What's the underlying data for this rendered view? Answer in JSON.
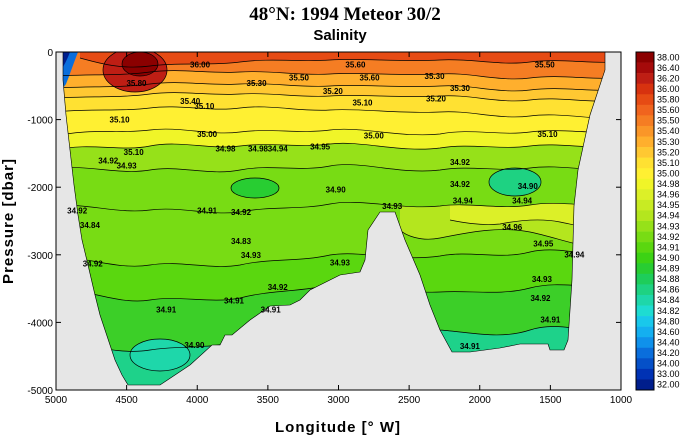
{
  "chart_data": {
    "type": "heatmap",
    "title": "48°N: 1994 Meteor 30/2",
    "subtitle": "Salinity",
    "xlabel": "Longitude [° W]",
    "ylabel": "Pressure [dbar]",
    "xlim": [
      5000,
      1000
    ],
    "ylim": [
      0,
      -5000
    ],
    "x_ticks": [
      "5000",
      "4500",
      "4000",
      "3500",
      "3000",
      "2500",
      "2000",
      "1500",
      "1000"
    ],
    "y_ticks": [
      "0",
      "-1000",
      "-2000",
      "-3000",
      "-4000",
      "-5000"
    ],
    "colorbar_levels": [
      "38.00",
      "36.40",
      "36.20",
      "36.00",
      "35.80",
      "35.60",
      "35.50",
      "35.40",
      "35.30",
      "35.20",
      "35.10",
      "35.00",
      "34.98",
      "34.96",
      "34.95",
      "34.94",
      "34.93",
      "34.92",
      "34.91",
      "34.90",
      "34.89",
      "34.88",
      "34.86",
      "34.84",
      "34.82",
      "34.80",
      "34.60",
      "34.40",
      "34.20",
      "34.00",
      "33.00",
      "32.00"
    ],
    "colorbar_colors": [
      "#8b0000",
      "#a50a0a",
      "#be1e14",
      "#d7320f",
      "#e64b14",
      "#f0641e",
      "#f57d23",
      "#fa9628",
      "#ffaf2d",
      "#ffc832",
      "#ffe132",
      "#fff032",
      "#f0f528",
      "#dcf028",
      "#c8eb23",
      "#b4e61e",
      "#96e119",
      "#78dc14",
      "#5ad70f",
      "#3cd214",
      "#28cd32",
      "#1ecd5a",
      "#1ed282",
      "#1ed7aa",
      "#1edcd2",
      "#19c8eb",
      "#14aff0",
      "#0f91eb",
      "#0a6edc",
      "#0550c8",
      "#0032b4",
      "#001e8c"
    ],
    "contour_labels": [
      {
        "text": "36.00",
        "lon": 3980,
        "p": -230
      },
      {
        "text": "35.60",
        "lon": 2880,
        "p": -230
      },
      {
        "text": "35.50",
        "lon": 1540,
        "p": -230
      },
      {
        "text": "35.80",
        "lon": 4430,
        "p": -500
      },
      {
        "text": "35.30",
        "lon": 3580,
        "p": -500
      },
      {
        "text": "35.50",
        "lon": 3280,
        "p": -420
      },
      {
        "text": "35.60",
        "lon": 2780,
        "p": -420
      },
      {
        "text": "35.30",
        "lon": 2320,
        "p": -400
      },
      {
        "text": "35.30",
        "lon": 2140,
        "p": -580
      },
      {
        "text": "35.20",
        "lon": 2310,
        "p": -730
      },
      {
        "text": "35.40",
        "lon": 4050,
        "p": -770
      },
      {
        "text": "35.20",
        "lon": 3040,
        "p": -620
      },
      {
        "text": "35.10",
        "lon": 3950,
        "p": -840
      },
      {
        "text": "35.10",
        "lon": 4550,
        "p": -1040
      },
      {
        "text": "35.10",
        "lon": 2830,
        "p": -790
      },
      {
        "text": "35.00",
        "lon": 3930,
        "p": -1260
      },
      {
        "text": "35.00",
        "lon": 2750,
        "p": -1280
      },
      {
        "text": "35.10",
        "lon": 1520,
        "p": -1260
      },
      {
        "text": "34.98",
        "lon": 3800,
        "p": -1470
      },
      {
        "text": "34.98",
        "lon": 3570,
        "p": -1470
      },
      {
        "text": "34.94",
        "lon": 3430,
        "p": -1470
      },
      {
        "text": "34.95",
        "lon": 3130,
        "p": -1440
      },
      {
        "text": "34.92",
        "lon": 4630,
        "p": -1650
      },
      {
        "text": "34.92",
        "lon": 2140,
        "p": -1670
      },
      {
        "text": "34.93",
        "lon": 4500,
        "p": -1720
      },
      {
        "text": "34.90",
        "lon": 3020,
        "p": -2080
      },
      {
        "text": "34.92",
        "lon": 2140,
        "p": -2000
      },
      {
        "text": "34.90",
        "lon": 1660,
        "p": -2030
      },
      {
        "text": "34.92",
        "lon": 4850,
        "p": -2390
      },
      {
        "text": "34.91",
        "lon": 3930,
        "p": -2390
      },
      {
        "text": "34.92",
        "lon": 3690,
        "p": -2410
      },
      {
        "text": "34.93",
        "lon": 2620,
        "p": -2320
      },
      {
        "text": "34.94",
        "lon": 2120,
        "p": -2240
      },
      {
        "text": "34.94",
        "lon": 1700,
        "p": -2240
      },
      {
        "text": "34.84",
        "lon": 4760,
        "p": -2600
      },
      {
        "text": "34.96",
        "lon": 1770,
        "p": -2630
      },
      {
        "text": "34.83",
        "lon": 3690,
        "p": -2840
      },
      {
        "text": "34.93",
        "lon": 3620,
        "p": -3050
      },
      {
        "text": "34.93",
        "lon": 2990,
        "p": -3160
      },
      {
        "text": "34.92",
        "lon": 4740,
        "p": -3170
      },
      {
        "text": "34.95",
        "lon": 1550,
        "p": -2880
      },
      {
        "text": "34.94",
        "lon": 1330,
        "p": -3040
      },
      {
        "text": "34.92",
        "lon": 3430,
        "p": -3520
      },
      {
        "text": "34.93",
        "lon": 1560,
        "p": -3400
      },
      {
        "text": "34.91",
        "lon": 3740,
        "p": -3720
      },
      {
        "text": "34.92",
        "lon": 1570,
        "p": -3680
      },
      {
        "text": "34.91",
        "lon": 4220,
        "p": -3850
      },
      {
        "text": "34.91",
        "lon": 3480,
        "p": -3850
      },
      {
        "text": "34.91",
        "lon": 1500,
        "p": -4000
      },
      {
        "text": "34.91",
        "lon": 2070,
        "p": -4390
      },
      {
        "text": "34.90",
        "lon": 4020,
        "p": -4380
      },
      {
        "text": "35.10",
        "lon": 4450,
        "p": -1520
      }
    ]
  }
}
